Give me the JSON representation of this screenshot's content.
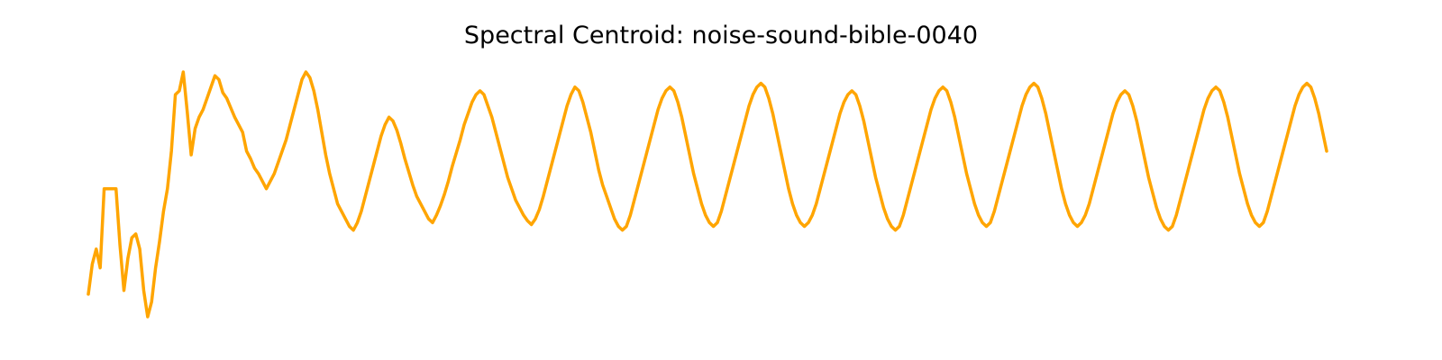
{
  "chart_data": {
    "type": "line",
    "title": "Spectral Centroid: noise-sound-bible-0040",
    "xlabel": "",
    "ylabel": "",
    "axes_visible": false,
    "grid": false,
    "series": [
      {
        "color": "#FFA500",
        "values": [
          -0.18,
          -0.02,
          0.06,
          -0.04,
          0.38,
          0.38,
          0.38,
          0.38,
          0.08,
          -0.16,
          0.01,
          0.12,
          0.14,
          0.06,
          -0.16,
          -0.3,
          -0.22,
          -0.04,
          0.1,
          0.26,
          0.38,
          0.58,
          0.88,
          0.9,
          1.0,
          0.79,
          0.56,
          0.7,
          0.76,
          0.8,
          0.86,
          0.92,
          0.98,
          0.96,
          0.89,
          0.86,
          0.81,
          0.76,
          0.72,
          0.68,
          0.58,
          0.54,
          0.49,
          0.46,
          0.42,
          0.38,
          0.42,
          0.46,
          0.52,
          0.58,
          0.64,
          0.72,
          0.8,
          0.88,
          0.96,
          1.0,
          0.97,
          0.9,
          0.8,
          0.68,
          0.56,
          0.46,
          0.38,
          0.3,
          0.26,
          0.22,
          0.18,
          0.16,
          0.2,
          0.26,
          0.34,
          0.42,
          0.5,
          0.58,
          0.66,
          0.72,
          0.76,
          0.74,
          0.69,
          0.62,
          0.54,
          0.47,
          0.4,
          0.34,
          0.3,
          0.26,
          0.22,
          0.2,
          0.24,
          0.29,
          0.35,
          0.42,
          0.5,
          0.57,
          0.64,
          0.72,
          0.78,
          0.84,
          0.88,
          0.9,
          0.88,
          0.82,
          0.76,
          0.68,
          0.6,
          0.52,
          0.44,
          0.38,
          0.32,
          0.28,
          0.24,
          0.21,
          0.19,
          0.22,
          0.27,
          0.34,
          0.42,
          0.5,
          0.58,
          0.66,
          0.74,
          0.82,
          0.88,
          0.92,
          0.9,
          0.84,
          0.76,
          0.68,
          0.58,
          0.48,
          0.4,
          0.34,
          0.28,
          0.22,
          0.18,
          0.16,
          0.18,
          0.24,
          0.32,
          0.4,
          0.48,
          0.56,
          0.64,
          0.72,
          0.8,
          0.86,
          0.9,
          0.92,
          0.9,
          0.84,
          0.76,
          0.66,
          0.56,
          0.46,
          0.38,
          0.3,
          0.24,
          0.2,
          0.18,
          0.2,
          0.26,
          0.34,
          0.42,
          0.5,
          0.58,
          0.66,
          0.74,
          0.82,
          0.88,
          0.92,
          0.94,
          0.92,
          0.86,
          0.78,
          0.68,
          0.58,
          0.48,
          0.38,
          0.3,
          0.24,
          0.2,
          0.18,
          0.2,
          0.24,
          0.3,
          0.38,
          0.46,
          0.54,
          0.62,
          0.7,
          0.78,
          0.84,
          0.88,
          0.9,
          0.88,
          0.82,
          0.74,
          0.64,
          0.54,
          0.44,
          0.36,
          0.28,
          0.22,
          0.18,
          0.16,
          0.18,
          0.24,
          0.32,
          0.4,
          0.48,
          0.56,
          0.64,
          0.72,
          0.8,
          0.86,
          0.9,
          0.92,
          0.9,
          0.84,
          0.76,
          0.66,
          0.56,
          0.46,
          0.38,
          0.3,
          0.24,
          0.2,
          0.18,
          0.2,
          0.26,
          0.34,
          0.42,
          0.5,
          0.58,
          0.66,
          0.74,
          0.82,
          0.88,
          0.92,
          0.94,
          0.92,
          0.86,
          0.78,
          0.68,
          0.58,
          0.48,
          0.38,
          0.3,
          0.24,
          0.2,
          0.18,
          0.2,
          0.24,
          0.3,
          0.38,
          0.46,
          0.54,
          0.62,
          0.7,
          0.78,
          0.84,
          0.88,
          0.9,
          0.88,
          0.82,
          0.74,
          0.64,
          0.54,
          0.44,
          0.36,
          0.28,
          0.22,
          0.18,
          0.16,
          0.18,
          0.24,
          0.32,
          0.4,
          0.48,
          0.56,
          0.64,
          0.72,
          0.8,
          0.86,
          0.9,
          0.92,
          0.9,
          0.84,
          0.76,
          0.66,
          0.56,
          0.46,
          0.38,
          0.3,
          0.24,
          0.2,
          0.18,
          0.2,
          0.26,
          0.34,
          0.42,
          0.5,
          0.58,
          0.66,
          0.74,
          0.82,
          0.88,
          0.92,
          0.94,
          0.92,
          0.86,
          0.78,
          0.68,
          0.58
        ]
      }
    ]
  }
}
